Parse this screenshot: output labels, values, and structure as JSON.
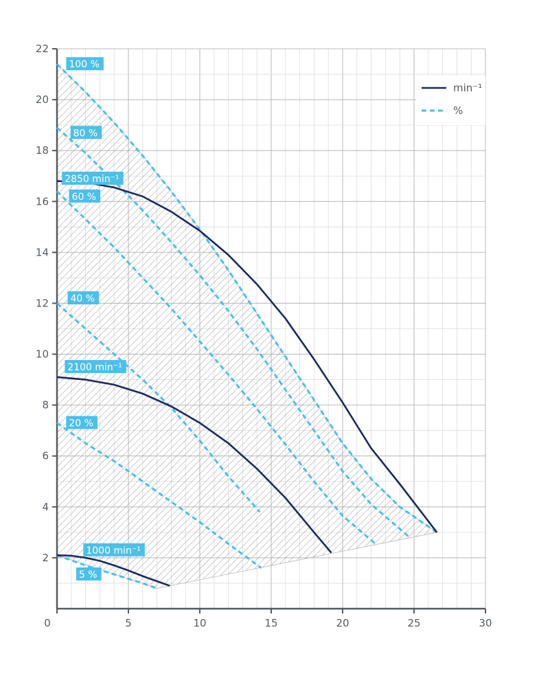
{
  "chart_data": {
    "type": "line",
    "title": "",
    "xlabel": "",
    "ylabel": "",
    "xlim": [
      0,
      30
    ],
    "ylim": [
      0,
      22
    ],
    "x_ticks": [
      "0",
      "5",
      "10",
      "15",
      "20",
      "25",
      "30"
    ],
    "y_ticks": [
      "2",
      "4",
      "6",
      "8",
      "10",
      "12",
      "14",
      "16",
      "18",
      "20",
      "22"
    ],
    "grid": true,
    "legend": {
      "placement": "top-right",
      "entries": [
        {
          "label": "min⁻¹",
          "style": "solid",
          "color": "#1b2a5c"
        },
        {
          "label": "%",
          "style": "dashed",
          "color": "#4dbfe8"
        }
      ]
    },
    "colors": {
      "speed": "#1b2a5c",
      "percent": "#4dbfe8",
      "label_bg": "#4dbfe8",
      "hatch": "#9a9a9a",
      "grid": "#cfcfcf",
      "axis": "#555a60"
    },
    "operating_area": {
      "boundary": [
        [
          0,
          21.4
        ],
        [
          2,
          20.3
        ],
        [
          4,
          19.1
        ],
        [
          6,
          17.8
        ],
        [
          8,
          16.4
        ],
        [
          10,
          14.9
        ],
        [
          12,
          13.3
        ],
        [
          14,
          11.6
        ],
        [
          16,
          9.9
        ],
        [
          18,
          8.2
        ],
        [
          20,
          6.5
        ],
        [
          22,
          5.1
        ],
        [
          24,
          4.0
        ],
        [
          26.6,
          3.0
        ],
        [
          7.9,
          0.9
        ],
        [
          7.0,
          0.8
        ],
        [
          0,
          2.1
        ]
      ]
    },
    "series": [
      {
        "name": "2850 min⁻¹",
        "kind": "speed",
        "label": "2850  min⁻¹",
        "label_at": [
          0.2,
          16.9
        ],
        "x": [
          0,
          2,
          4,
          6,
          8,
          10,
          12,
          14,
          16,
          18,
          20,
          22,
          24,
          26.6
        ],
        "y": [
          16.8,
          16.75,
          16.55,
          16.2,
          15.6,
          14.85,
          13.9,
          12.75,
          11.4,
          9.8,
          8.1,
          6.3,
          4.9,
          3.0
        ]
      },
      {
        "name": "2100 min⁻¹",
        "kind": "speed",
        "label": "2100 min⁻¹",
        "label_at": [
          0.4,
          9.5
        ],
        "x": [
          0,
          2,
          4,
          6,
          8,
          10,
          12,
          14,
          16,
          18,
          19.2
        ],
        "y": [
          9.1,
          9.0,
          8.8,
          8.45,
          7.95,
          7.3,
          6.5,
          5.5,
          4.35,
          3.0,
          2.2
        ]
      },
      {
        "name": "1000 min⁻¹",
        "kind": "speed",
        "label": "1000 min⁻¹",
        "label_at": [
          1.7,
          2.3
        ],
        "x": [
          0,
          1,
          2,
          3,
          4,
          5,
          6,
          7,
          7.9
        ],
        "y": [
          2.1,
          2.08,
          2.0,
          1.88,
          1.7,
          1.5,
          1.28,
          1.08,
          0.9
        ]
      },
      {
        "name": "100 %",
        "kind": "percent",
        "label": "100 %",
        "label_at": [
          0.5,
          21.4
        ],
        "x": [
          0,
          2,
          4,
          6,
          8,
          10,
          12,
          14,
          16,
          18,
          20,
          22,
          24,
          26.6
        ],
        "y": [
          21.4,
          20.3,
          19.1,
          17.8,
          16.4,
          14.9,
          13.3,
          11.6,
          9.9,
          8.2,
          6.5,
          5.1,
          4.0,
          3.0
        ]
      },
      {
        "name": "80 %",
        "kind": "percent",
        "label": "80 %",
        "label_at": [
          0.8,
          18.7
        ],
        "x": [
          0,
          2,
          4,
          6,
          8,
          10,
          12,
          14,
          16,
          18,
          20,
          22,
          24.7
        ],
        "y": [
          18.9,
          17.9,
          16.8,
          15.65,
          14.4,
          13.1,
          11.7,
          10.2,
          8.6,
          7.0,
          5.4,
          4.1,
          2.8
        ]
      },
      {
        "name": "60 %",
        "kind": "percent",
        "label": "60 %",
        "label_at": [
          0.7,
          16.2
        ],
        "x": [
          0,
          2,
          4,
          6,
          8,
          10,
          12,
          14,
          16,
          18,
          20,
          22.4
        ],
        "y": [
          16.4,
          15.3,
          14.2,
          13.0,
          11.8,
          10.5,
          9.2,
          7.85,
          6.45,
          5.0,
          3.65,
          2.5
        ]
      },
      {
        "name": "40 %",
        "kind": "percent",
        "label": "40 %",
        "label_at": [
          0.6,
          12.2
        ],
        "x": [
          0,
          2,
          4,
          6,
          8,
          10,
          12,
          14.2
        ],
        "y": [
          12.0,
          11.0,
          10.0,
          9.0,
          7.9,
          6.6,
          5.2,
          3.8
        ]
      },
      {
        "name": "20 %",
        "kind": "percent",
        "label": "20 %",
        "label_at": [
          0.5,
          7.3
        ],
        "x": [
          0,
          2,
          4,
          6,
          8,
          10,
          12,
          14.3
        ],
        "y": [
          7.3,
          6.5,
          5.8,
          5.0,
          4.2,
          3.4,
          2.55,
          1.6
        ]
      },
      {
        "name": "5 %",
        "kind": "percent",
        "label": "5 %",
        "label_at": [
          1.2,
          1.35
        ],
        "x": [
          0,
          2,
          4,
          6,
          7.0
        ],
        "y": [
          2.1,
          1.7,
          1.35,
          1.0,
          0.8
        ]
      }
    ]
  }
}
